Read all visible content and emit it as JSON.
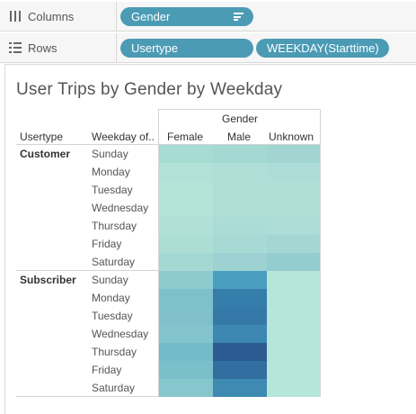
{
  "shelves": {
    "columns": {
      "label": "Columns",
      "pill": "Gender"
    },
    "rows": {
      "label": "Rows",
      "pills": [
        "Usertype",
        "WEEKDAY(Starttime)"
      ]
    }
  },
  "sheet": {
    "title": "User Trips by Gender by Weekday",
    "header_group": "Gender",
    "row_headers": [
      "Usertype",
      "Weekday of.."
    ],
    "columns": [
      "Female",
      "Male",
      "Unknown"
    ]
  },
  "chart_data": {
    "type": "heatmap",
    "title": "User Trips by Gender by Weekday",
    "x_field": "Gender",
    "x": [
      "Female",
      "Male",
      "Unknown"
    ],
    "row_fields": [
      "Usertype",
      "Weekday of.."
    ],
    "groups": [
      {
        "usertype": "Customer",
        "weekdays": [
          "Sunday",
          "Monday",
          "Tuesday",
          "Wednesday",
          "Thursday",
          "Friday",
          "Saturday"
        ],
        "colors": [
          [
            "#a6dcd4",
            "#a4d8d2",
            "#a2d5d2"
          ],
          [
            "#b2e2d7",
            "#afdfd7",
            "#aedcd7"
          ],
          [
            "#b4e3d8",
            "#b0dfd7",
            "#b0dfd7"
          ],
          [
            "#b4e3d8",
            "#b0dfd7",
            "#afdfd7"
          ],
          [
            "#b0e0d7",
            "#acdcd6",
            "#aedcd6"
          ],
          [
            "#acded6",
            "#a8dad5",
            "#a6d6d4"
          ],
          [
            "#a4d8d2",
            "#9ed2d2",
            "#94cdd0"
          ]
        ]
      },
      {
        "usertype": "Subscriber",
        "weekdays": [
          "Sunday",
          "Monday",
          "Tuesday",
          "Wednesday",
          "Thursday",
          "Friday",
          "Saturday"
        ],
        "colors": [
          [
            "#8ecbcf",
            "#4a9fc0",
            "#b6e5d9"
          ],
          [
            "#7ec0cb",
            "#357eab",
            "#b6e5d9"
          ],
          [
            "#7fc0cb",
            "#3479a8",
            "#b6e5d9"
          ],
          [
            "#84c4cc",
            "#3c88b2",
            "#b6e5d9"
          ],
          [
            "#74bbc9",
            "#2b5b91",
            "#b6e5d9"
          ],
          [
            "#7bbfca",
            "#326e9f",
            "#b6e5d9"
          ],
          [
            "#86c6cd",
            "#3e8ab2",
            "#b6e5d9"
          ]
        ]
      }
    ]
  }
}
